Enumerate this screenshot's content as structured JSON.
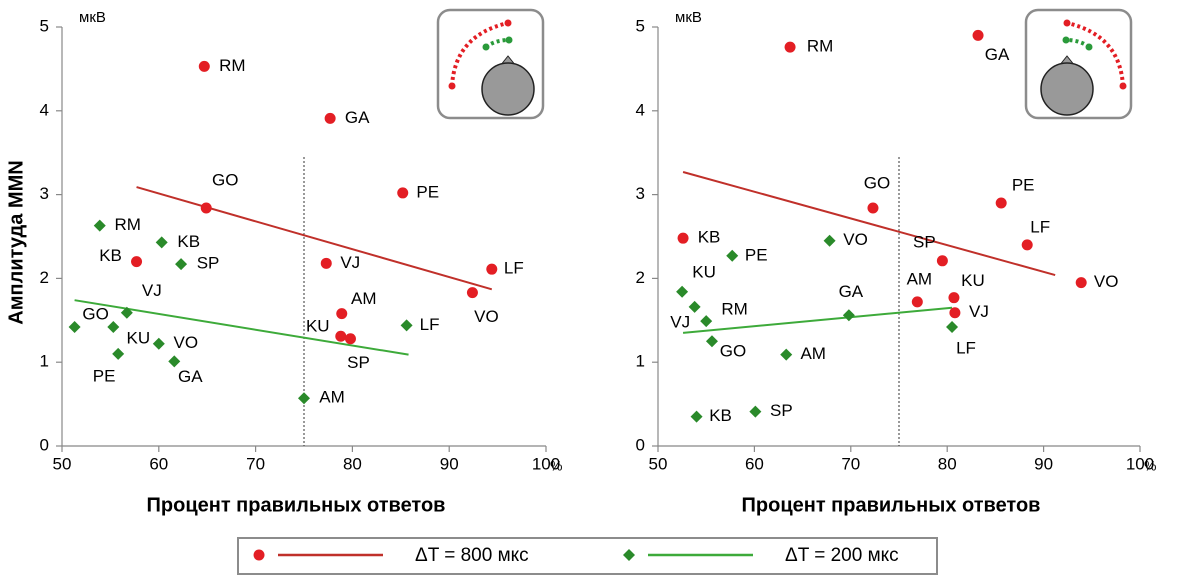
{
  "chart_data": [
    {
      "type": "scatter",
      "x_label": "Процент правильных ответов",
      "y_label": "Амплитуда MMN",
      "x_unit": "%",
      "y_unit": "мкВ",
      "xlim": [
        50,
        100
      ],
      "ylim": [
        0,
        5
      ],
      "xticks": [
        50,
        60,
        70,
        80,
        90,
        100
      ],
      "yticks": [
        0,
        1,
        2,
        3,
        4,
        5
      ],
      "vline": 75,
      "series": [
        {
          "name": "ΔT = 800 мкс",
          "marker": "circle",
          "color": "#e31e24",
          "line_color": "#c0302a",
          "labels": [
            "RM",
            "GA",
            "GO",
            "PE",
            "KB",
            "VJ",
            "LF",
            "VO",
            "AM",
            "KU",
            "SP"
          ],
          "x": [
            64.7,
            77.7,
            64.9,
            85.2,
            57.7,
            77.3,
            94.4,
            92.4,
            78.9,
            78.8,
            79.8
          ],
          "values": [
            4.53,
            3.91,
            2.84,
            3.02,
            2.2,
            2.18,
            2.11,
            1.83,
            1.58,
            1.31,
            1.28
          ],
          "trend": {
            "x": [
              57.7,
              94.4
            ],
            "y": [
              3.09,
              1.87
            ]
          }
        },
        {
          "name": "ΔT = 200 мкс",
          "marker": "diamond",
          "color": "#2a8a2a",
          "line_color": "#3daa3a",
          "labels": [
            "RM",
            "KB",
            "SP",
            "VJ",
            "GO",
            "KU",
            "VO",
            "PE",
            "GA",
            "AM",
            "LF"
          ],
          "x": [
            53.9,
            60.3,
            62.3,
            56.7,
            51.3,
            55.3,
            60.0,
            55.8,
            61.6,
            75.0,
            85.6
          ],
          "values": [
            2.63,
            2.43,
            2.17,
            1.59,
            1.42,
            1.42,
            1.22,
            1.1,
            1.01,
            0.57,
            1.44
          ],
          "trend": {
            "x": [
              51.3,
              85.8
            ],
            "y": [
              1.74,
              1.09
            ]
          }
        }
      ]
    },
    {
      "type": "scatter",
      "x_label": "Процент правильных ответов",
      "x_unit": "%",
      "y_unit": "мкВ",
      "xlim": [
        50,
        100
      ],
      "ylim": [
        0,
        5
      ],
      "xticks": [
        50,
        60,
        70,
        80,
        90,
        100
      ],
      "yticks": [
        0,
        1,
        2,
        3,
        4,
        5
      ],
      "vline": 75,
      "series": [
        {
          "name": "ΔT = 800 мкс",
          "marker": "circle",
          "color": "#e31e24",
          "line_color": "#c0302a",
          "labels": [
            "RM",
            "GA",
            "GO",
            "PE",
            "KB",
            "SP",
            "LF",
            "AM",
            "KU",
            "VO",
            "VJ"
          ],
          "x": [
            63.7,
            83.2,
            72.3,
            85.6,
            52.6,
            79.5,
            88.3,
            76.9,
            80.7,
            93.9,
            80.8
          ],
          "values": [
            4.76,
            4.9,
            2.84,
            2.9,
            2.48,
            2.21,
            2.4,
            1.72,
            1.77,
            1.95,
            1.59
          ],
          "trend": {
            "x": [
              52.6,
              91.2
            ],
            "y": [
              3.27,
              2.04
            ]
          }
        },
        {
          "name": "ΔT = 200 мкс",
          "marker": "diamond",
          "color": "#2a8a2a",
          "line_color": "#3daa3a",
          "labels": [
            "VO",
            "PE",
            "KU",
            "RM",
            "VJ",
            "GO",
            "GA",
            "AM",
            "LF",
            "KB",
            "SP"
          ],
          "x": [
            67.8,
            57.7,
            52.5,
            53.8,
            55.0,
            55.6,
            69.8,
            63.3,
            80.5,
            54.0,
            60.1
          ],
          "values": [
            2.45,
            2.27,
            1.84,
            1.66,
            1.49,
            1.25,
            1.56,
            1.09,
            1.42,
            0.35,
            0.41
          ],
          "trend": {
            "x": [
              52.6,
              80.5
            ],
            "y": [
              1.35,
              1.65
            ]
          }
        }
      ]
    }
  ]
}
